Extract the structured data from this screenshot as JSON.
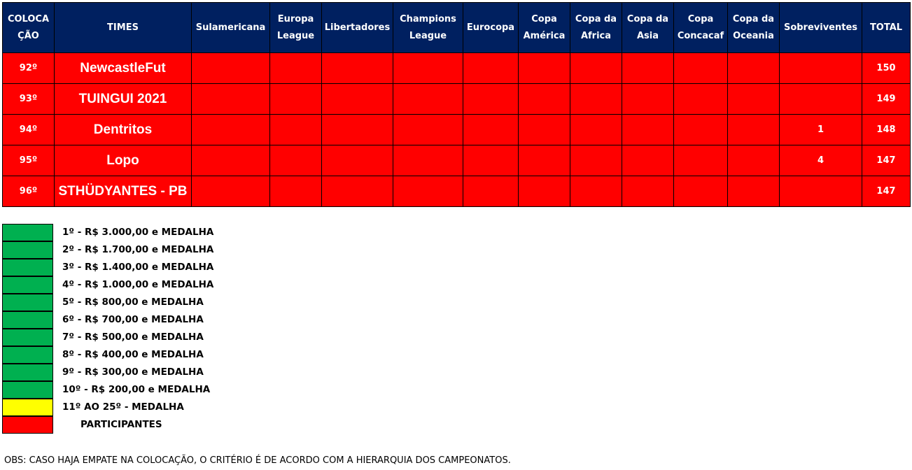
{
  "headers": [
    "COLOCA ÇÃO",
    "TIMES",
    "Sulamericana",
    "Europa League",
    "Libertadores",
    "Champions League",
    "Eurocopa",
    "Copa América",
    "Copa da Africa",
    "Copa da Asia",
    "Copa Concacaf",
    "Copa da Oceania",
    "Sobreviventes",
    "TOTAL"
  ],
  "rows": [
    {
      "pos": "92º",
      "team": "NewcastleFut",
      "sobreviventes": "",
      "total": "150"
    },
    {
      "pos": "93º",
      "team": "TUINGUI 2021",
      "sobreviventes": "",
      "total": "149"
    },
    {
      "pos": "94º",
      "team": "Dentritos",
      "sobreviventes": "1",
      "total": "148"
    },
    {
      "pos": "95º",
      "team": "Lopo",
      "sobreviventes": "4",
      "total": "147"
    },
    {
      "pos": "96º",
      "team": "STHÜDYANTES - PB",
      "sobreviventes": "",
      "total": "147"
    }
  ],
  "colors": {
    "header": "#002060",
    "row": "#ff0000",
    "green": "#00b050",
    "yellow": "#ffff00",
    "red": "#ff0000"
  },
  "legend": [
    {
      "text": "1º - R$ 3.000,00 e MEDALHA",
      "color": "#00b050"
    },
    {
      "text": "2º - R$ 1.700,00 e MEDALHA",
      "color": "#00b050"
    },
    {
      "text": "3º - R$ 1.400,00 e MEDALHA",
      "color": "#00b050"
    },
    {
      "text": "4º - R$ 1.000,00 e MEDALHA",
      "color": "#00b050"
    },
    {
      "text": "5º - R$ 800,00 e MEDALHA",
      "color": "#00b050"
    },
    {
      "text": "6º - R$ 700,00 e MEDALHA",
      "color": "#00b050"
    },
    {
      "text": "7º - R$ 500,00 e MEDALHA",
      "color": "#00b050"
    },
    {
      "text": "8º - R$ 400,00 e MEDALHA",
      "color": "#00b050"
    },
    {
      "text": "9º - R$ 300,00 e MEDALHA",
      "color": "#00b050"
    },
    {
      "text": "10º - R$ 200,00 e MEDALHA",
      "color": "#00b050"
    },
    {
      "text": "11º AO 25º - MEDALHA",
      "color": "#ffff00"
    },
    {
      "text": "PARTICIPANTES",
      "color": "#ff0000"
    }
  ],
  "obs": "OBS: CASO HAJA EMPATE NA COLOCAÇÃO, O CRITÉRIO É DE ACORDO COM A HIERARQUIA DOS CAMPEONATOS."
}
